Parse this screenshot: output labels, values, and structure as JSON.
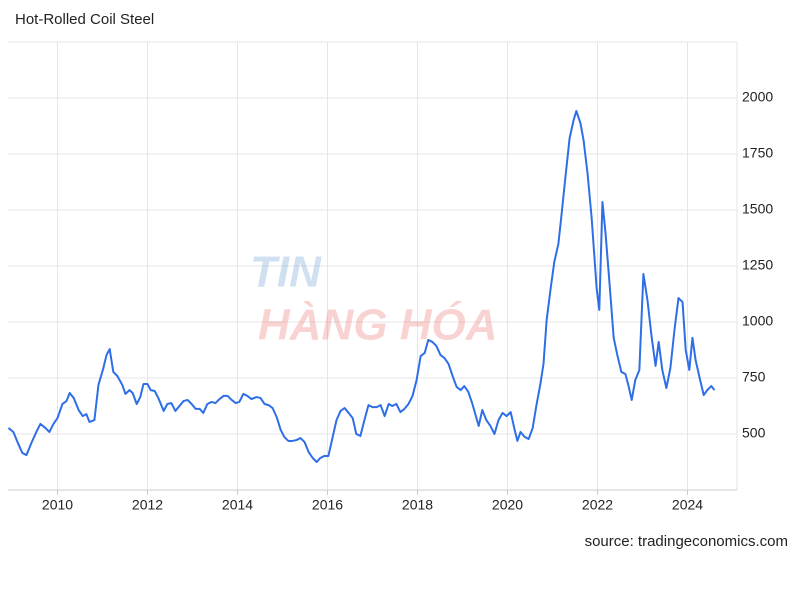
{
  "chart_data": {
    "type": "line",
    "title": "Hot-Rolled Coil Steel",
    "source": "source: tradingeconomics.com",
    "watermark": [
      "TIN",
      "HÀNG HÓA"
    ],
    "xlim": [
      2008.9,
      2025.1
    ],
    "ylim": [
      250,
      2250
    ],
    "xticks": [
      2010,
      2012,
      2014,
      2016,
      2018,
      2020,
      2022,
      2024
    ],
    "yticks": [
      500,
      750,
      1000,
      1250,
      1500,
      1750,
      2000
    ],
    "grid": true,
    "x": [
      2008.91,
      2009.02,
      2009.13,
      2009.22,
      2009.31,
      2009.42,
      2009.53,
      2009.62,
      2009.73,
      2009.82,
      2009.91,
      2010.0,
      2010.11,
      2010.2,
      2010.27,
      2010.36,
      2010.47,
      2010.56,
      2010.64,
      2010.71,
      2010.82,
      2010.91,
      2011.02,
      2011.09,
      2011.16,
      2011.24,
      2011.33,
      2011.44,
      2011.51,
      2011.6,
      2011.67,
      2011.76,
      2011.84,
      2011.91,
      2012.0,
      2012.07,
      2012.16,
      2012.24,
      2012.36,
      2012.44,
      2012.53,
      2012.62,
      2012.71,
      2012.8,
      2012.89,
      2012.98,
      2013.07,
      2013.16,
      2013.24,
      2013.33,
      2013.42,
      2013.51,
      2013.6,
      2013.69,
      2013.78,
      2013.87,
      2013.96,
      2014.04,
      2014.13,
      2014.22,
      2014.31,
      2014.42,
      2014.51,
      2014.6,
      2014.69,
      2014.78,
      2014.87,
      2014.96,
      2015.04,
      2015.13,
      2015.22,
      2015.31,
      2015.4,
      2015.49,
      2015.58,
      2015.67,
      2015.76,
      2015.84,
      2015.93,
      2016.02,
      2016.11,
      2016.2,
      2016.29,
      2016.38,
      2016.47,
      2016.56,
      2016.64,
      2016.73,
      2016.82,
      2016.91,
      2017.0,
      2017.09,
      2017.18,
      2017.27,
      2017.36,
      2017.44,
      2017.53,
      2017.62,
      2017.71,
      2017.8,
      2017.89,
      2017.98,
      2018.07,
      2018.16,
      2018.24,
      2018.33,
      2018.42,
      2018.51,
      2018.6,
      2018.69,
      2018.78,
      2018.87,
      2018.96,
      2019.04,
      2019.13,
      2019.22,
      2019.31,
      2019.36,
      2019.44,
      2019.53,
      2019.62,
      2019.71,
      2019.8,
      2019.89,
      2019.98,
      2020.07,
      2020.16,
      2020.22,
      2020.29,
      2020.38,
      2020.47,
      2020.56,
      2020.64,
      2020.73,
      2020.8,
      2020.87,
      2020.96,
      2021.04,
      2021.13,
      2021.2,
      2021.29,
      2021.38,
      2021.47,
      2021.53,
      2021.62,
      2021.69,
      2021.78,
      2021.87,
      2021.93,
      2021.98,
      2022.04,
      2022.11,
      2022.18,
      2022.27,
      2022.36,
      2022.44,
      2022.53,
      2022.62,
      2022.69,
      2022.76,
      2022.84,
      2022.93,
      2023.02,
      2023.11,
      2023.2,
      2023.29,
      2023.36,
      2023.44,
      2023.53,
      2023.62,
      2023.71,
      2023.8,
      2023.89,
      2023.96,
      2024.04,
      2024.11,
      2024.18,
      2024.27,
      2024.36,
      2024.44,
      2024.53,
      2024.6
    ],
    "series": [
      {
        "color": "#2e6ee6",
        "values": [
          527,
          509,
          455,
          415,
          406,
          460,
          509,
          545,
          527,
          509,
          545,
          571,
          634,
          647,
          683,
          661,
          607,
          580,
          589,
          554,
          562,
          719,
          795,
          853,
          879,
          777,
          759,
          719,
          679,
          696,
          683,
          634,
          665,
          723,
          723,
          696,
          692,
          661,
          603,
          634,
          638,
          603,
          625,
          647,
          652,
          634,
          612,
          612,
          594,
          634,
          643,
          638,
          656,
          670,
          670,
          652,
          638,
          643,
          679,
          670,
          656,
          665,
          661,
          634,
          629,
          616,
          576,
          518,
          487,
          469,
          469,
          473,
          482,
          464,
          420,
          393,
          375,
          393,
          402,
          402,
          482,
          562,
          603,
          616,
          594,
          571,
          500,
          491,
          562,
          629,
          620,
          620,
          629,
          580,
          634,
          625,
          634,
          598,
          612,
          634,
          670,
          741,
          848,
          862,
          920,
          911,
          893,
          853,
          839,
          813,
          759,
          710,
          696,
          714,
          688,
          634,
          571,
          536,
          607,
          562,
          536,
          500,
          562,
          594,
          580,
          598,
          518,
          469,
          509,
          487,
          478,
          527,
          625,
          723,
          813,
          1009,
          1152,
          1268,
          1348,
          1478,
          1652,
          1821,
          1902,
          1942,
          1888,
          1812,
          1661,
          1464,
          1295,
          1152,
          1054,
          1536,
          1393,
          1165,
          929,
          853,
          777,
          768,
          714,
          652,
          741,
          786,
          1214,
          1098,
          938,
          804,
          911,
          786,
          705,
          795,
          964,
          1107,
          1089,
          875,
          786,
          929,
          830,
          750,
          674,
          696,
          714,
          696
        ]
      }
    ]
  }
}
